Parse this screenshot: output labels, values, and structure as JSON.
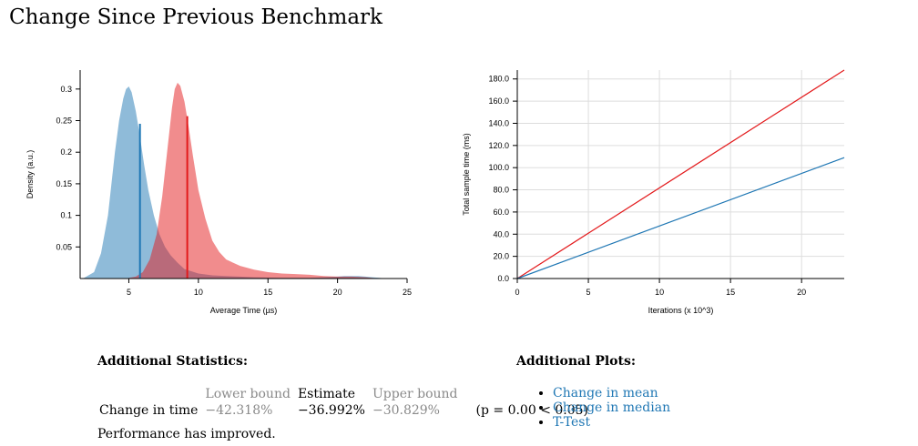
{
  "page": {
    "title": "Change Since Previous Benchmark"
  },
  "chart_data": [
    {
      "type": "area",
      "title": "",
      "xlabel": "Average Time (µs)",
      "ylabel": "Density (a.u.)",
      "xlim": [
        1.5,
        25
      ],
      "ylim": [
        0,
        0.33
      ],
      "x_ticks": [
        "5",
        "10",
        "15",
        "20",
        "25"
      ],
      "y_ticks": [
        "0.05",
        "0.1",
        "0.15",
        "0.2",
        "0.25",
        "0.3"
      ],
      "grid": false,
      "legend": "none",
      "series": [
        {
          "color": "#1f77b4",
          "x": [
            1.7,
            2.5,
            3.0,
            3.5,
            4.0,
            4.3,
            4.6,
            4.8,
            5.0,
            5.2,
            5.5,
            5.8,
            6.1,
            6.4,
            6.8,
            7.2,
            7.6,
            8.0,
            8.5,
            9.0,
            10,
            11,
            12,
            13,
            14,
            16,
            18,
            19,
            20,
            20.5,
            21,
            21.5,
            22,
            22.5,
            23,
            23.5
          ],
          "values": [
            0,
            0.01,
            0.04,
            0.1,
            0.2,
            0.25,
            0.285,
            0.3,
            0.304,
            0.295,
            0.265,
            0.225,
            0.18,
            0.14,
            0.1,
            0.07,
            0.05,
            0.037,
            0.025,
            0.015,
            0.008,
            0.005,
            0.004,
            0.003,
            0.002,
            0.001,
            0.001,
            0.002,
            0.003,
            0.004,
            0.004,
            0.004,
            0.003,
            0.002,
            0.001,
            0
          ],
          "mean_marker": 5.8,
          "mean_height": 0.245
        },
        {
          "color": "#e31a1c",
          "x": [
            4.8,
            5.5,
            6.0,
            6.5,
            7.0,
            7.4,
            7.8,
            8.1,
            8.3,
            8.5,
            8.7,
            9.0,
            9.3,
            9.6,
            10.0,
            10.5,
            11,
            11.5,
            12,
            13,
            14,
            15,
            16,
            17,
            18,
            19,
            20,
            21,
            22,
            23
          ],
          "values": [
            0,
            0.003,
            0.01,
            0.03,
            0.07,
            0.13,
            0.21,
            0.27,
            0.3,
            0.31,
            0.305,
            0.28,
            0.24,
            0.195,
            0.14,
            0.095,
            0.06,
            0.042,
            0.03,
            0.02,
            0.014,
            0.01,
            0.008,
            0.007,
            0.006,
            0.004,
            0.003,
            0.003,
            0.002,
            0
          ],
          "mean_marker": 9.2,
          "mean_height": 0.257
        }
      ]
    },
    {
      "type": "line",
      "title": "",
      "xlabel": "Iterations (x 10^3)",
      "ylabel": "Total sample time (ms)",
      "xlim": [
        0,
        23
      ],
      "ylim": [
        0,
        188
      ],
      "x_ticks": [
        "0",
        "5",
        "10",
        "15",
        "20"
      ],
      "y_ticks": [
        "0.0",
        "20.0",
        "40.0",
        "60.0",
        "80.0",
        "100.0",
        "120.0",
        "140.0",
        "160.0",
        "180.0"
      ],
      "grid": true,
      "legend": "none",
      "series": [
        {
          "color": "#e31a1c",
          "x": [
            0,
            23
          ],
          "values": [
            0,
            188
          ]
        },
        {
          "color": "#1f77b4",
          "x": [
            0,
            23
          ],
          "values": [
            0,
            109
          ]
        }
      ]
    }
  ],
  "stats": {
    "title": "Additional Statistics:",
    "headers": {
      "lower": "Lower bound",
      "estimate": "Estimate",
      "upper": "Upper bound"
    },
    "row": {
      "label": "Change in time",
      "lower": "−42.318%",
      "estimate": "−36.992%",
      "upper": "−30.829%",
      "p": "(p = 0.00 < 0.05)"
    },
    "verdict": "Performance has improved."
  },
  "plots": {
    "title": "Additional Plots:",
    "links": [
      "Change in mean",
      "Change in median",
      "T-Test"
    ]
  }
}
